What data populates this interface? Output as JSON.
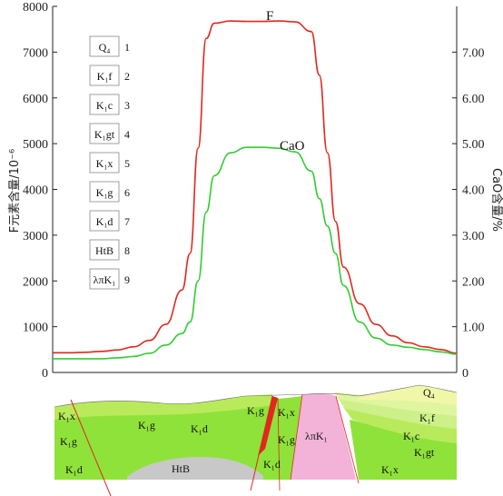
{
  "chart_data": {
    "type": "line",
    "left_axis": {
      "label": "F元素含量/10⁻⁶",
      "range": [
        0,
        8000
      ],
      "ticks": [
        "0",
        "1000",
        "2000",
        "3000",
        "4000",
        "5000",
        "6000",
        "7000",
        "8000"
      ]
    },
    "right_axis": {
      "label": "CaO含量/%",
      "range": [
        0,
        8
      ],
      "ticks": [
        "0",
        "1.00",
        "2.00",
        "3.00",
        "4.00",
        "5.00",
        "6.00",
        "7.00"
      ]
    },
    "x": [
      0,
      4,
      8,
      12,
      16,
      20,
      24,
      28,
      32,
      34,
      36,
      38,
      40,
      44,
      48,
      52,
      56,
      60,
      64,
      66,
      68,
      70,
      72,
      76,
      80,
      84,
      88,
      92,
      96,
      100
    ],
    "series": [
      {
        "name": "F",
        "color": "#e0281e",
        "axis": "left",
        "values": [
          430,
          430,
          440,
          460,
          490,
          560,
          700,
          1050,
          1800,
          2600,
          4900,
          7300,
          7630,
          7680,
          7670,
          7670,
          7680,
          7660,
          7450,
          6500,
          4800,
          3300,
          2300,
          1500,
          1050,
          800,
          650,
          560,
          500,
          420
        ]
      },
      {
        "name": "CaO",
        "color": "#33cc33",
        "axis": "right",
        "values": [
          0.3,
          0.3,
          0.3,
          0.3,
          0.32,
          0.35,
          0.42,
          0.6,
          0.85,
          1.1,
          2.0,
          3.5,
          4.3,
          4.8,
          4.92,
          4.92,
          4.9,
          4.82,
          4.4,
          3.8,
          3.2,
          2.6,
          1.9,
          1.1,
          0.75,
          0.6,
          0.55,
          0.5,
          0.45,
          0.4
        ]
      }
    ]
  },
  "legend": [
    {
      "label": "Q₄",
      "num": "1"
    },
    {
      "label": "K₁f",
      "num": "2"
    },
    {
      "label": "K₁c",
      "num": "3"
    },
    {
      "label": "K₁gt",
      "num": "4"
    },
    {
      "label": "K₁x",
      "num": "5"
    },
    {
      "label": "K₁g",
      "num": "6"
    },
    {
      "label": "K₁d",
      "num": "7"
    },
    {
      "label": "HtB",
      "num": "8"
    },
    {
      "label": "λπK₁",
      "num": "9"
    }
  ],
  "cross_section": {
    "colors": {
      "yellow": "#f1f7a8",
      "lightgreen": "#cdf08a",
      "green": "#8fe23a",
      "gray": "#c8c8c8",
      "pink": "#f3b3d8",
      "fault": "#e0281e"
    },
    "labels": {
      "k1x_left": "K₁x",
      "k1g_left": "K₁g",
      "k1d_left": "K₁d",
      "k1g_mid": "K₁g",
      "k1d_mid": "K₁d",
      "htb": "HtB",
      "k1g_fault": "K₁g",
      "k1x_fault": "K₁x",
      "k1g_fault2": "K₁g",
      "k1d_fault": "K₁d",
      "intrusion": "λπK₁",
      "q4": "Q₄",
      "k1f": "K₁f",
      "k1c": "K₁c",
      "k1gt": "K₁gt",
      "k1x_right": "K₁x"
    }
  }
}
